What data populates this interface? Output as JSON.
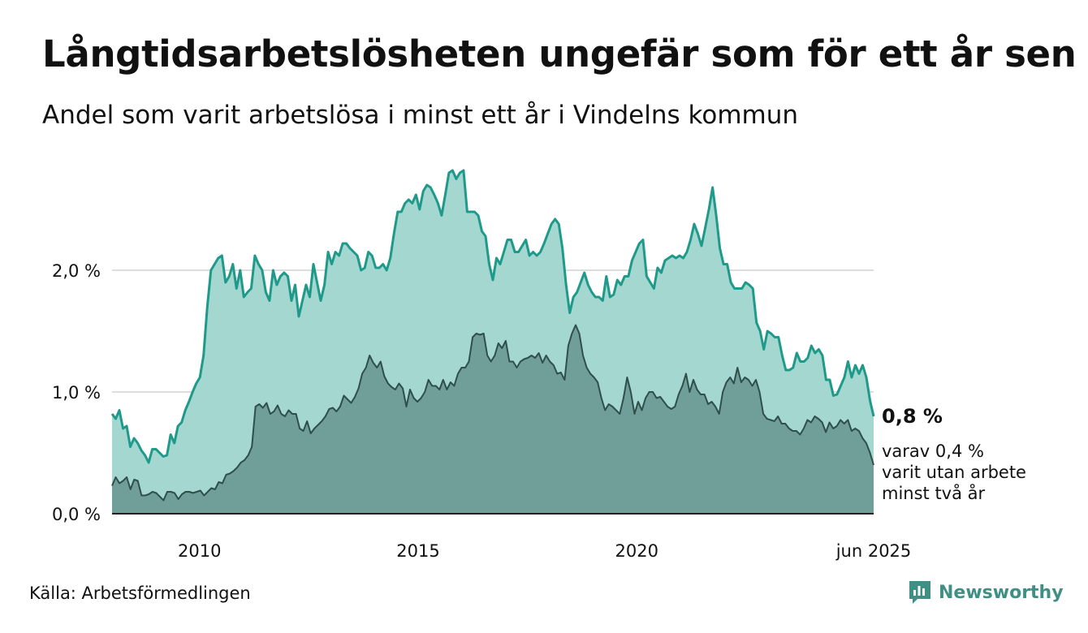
{
  "header": {
    "title": "Långtidsarbetslösheten ungefär som för ett år sen",
    "subtitle": "Andel som varit arbetslösa i minst ett år i Vindelns kommun"
  },
  "footer": {
    "source": "Källa: Arbetsförmedlingen",
    "brand": "Newsworthy",
    "brand_icon": "bar-chart-speech-bubble-icon"
  },
  "colors": {
    "upper_fill": "#a3d7d0",
    "upper_line": "#1f9a8a",
    "lower_fill": "#6f9f98",
    "lower_line": "#2f4f4a",
    "grid": "#dddddd",
    "axis": "#222222",
    "brand": "#3f8f85"
  },
  "chart_data": {
    "type": "area",
    "x_start": "2008-01",
    "x_end": "2025-06",
    "x_interval": "month",
    "ylim": [
      0,
      3.0
    ],
    "grid": true,
    "y_ticks": [
      {
        "value": 0,
        "label": "0,0 %"
      },
      {
        "value": 1,
        "label": "1,0 %"
      },
      {
        "value": 2,
        "label": "2,0 %"
      }
    ],
    "x_ticks": [
      {
        "date": "2010-01",
        "label": "2010"
      },
      {
        "date": "2015-01",
        "label": "2015"
      },
      {
        "date": "2020-01",
        "label": "2020"
      },
      {
        "date": "2025-06",
        "label": "jun 2025"
      }
    ],
    "annotations": {
      "end_value": "0,8 %",
      "end_note": [
        "varav 0,4 %",
        "varit utan arbete",
        "minst två år"
      ]
    },
    "series": [
      {
        "key": "min_ett_ar",
        "style": "upper",
        "values": [
          0.82,
          0.78,
          0.85,
          0.7,
          0.72,
          0.55,
          0.62,
          0.58,
          0.52,
          0.48,
          0.42,
          0.53,
          0.53,
          0.5,
          0.47,
          0.48,
          0.65,
          0.58,
          0.72,
          0.75,
          0.85,
          0.92,
          1.0,
          1.07,
          1.12,
          1.3,
          1.7,
          2.0,
          2.05,
          2.1,
          2.12,
          1.9,
          1.95,
          2.05,
          1.85,
          2.0,
          1.78,
          1.82,
          1.85,
          2.12,
          2.05,
          2.0,
          1.82,
          1.75,
          2.0,
          1.88,
          1.95,
          1.98,
          1.95,
          1.75,
          1.88,
          1.62,
          1.75,
          1.88,
          1.78,
          2.05,
          1.9,
          1.75,
          1.88,
          2.15,
          2.05,
          2.15,
          2.12,
          2.22,
          2.22,
          2.18,
          2.15,
          2.12,
          2.0,
          2.02,
          2.15,
          2.12,
          2.02,
          2.02,
          2.05,
          2.0,
          2.1,
          2.3,
          2.48,
          2.48,
          2.55,
          2.58,
          2.55,
          2.62,
          2.5,
          2.65,
          2.7,
          2.68,
          2.62,
          2.55,
          2.45,
          2.62,
          2.8,
          2.82,
          2.75,
          2.8,
          2.82,
          2.48,
          2.48,
          2.48,
          2.45,
          2.32,
          2.28,
          2.05,
          1.92,
          2.1,
          2.05,
          2.15,
          2.25,
          2.25,
          2.15,
          2.15,
          2.2,
          2.25,
          2.12,
          2.15,
          2.12,
          2.15,
          2.22,
          2.3,
          2.38,
          2.42,
          2.38,
          2.18,
          1.88,
          1.65,
          1.78,
          1.82,
          1.9,
          1.98,
          1.88,
          1.82,
          1.78,
          1.78,
          1.75,
          1.95,
          1.78,
          1.8,
          1.92,
          1.88,
          1.95,
          1.95,
          2.08,
          2.15,
          2.22,
          2.25,
          1.95,
          1.9,
          1.85,
          2.02,
          1.98,
          2.08,
          2.1,
          2.12,
          2.1,
          2.12,
          2.1,
          2.15,
          2.25,
          2.38,
          2.3,
          2.2,
          2.35,
          2.5,
          2.68,
          2.45,
          2.18,
          2.05,
          2.05,
          1.9,
          1.85,
          1.85,
          1.85,
          1.9,
          1.88,
          1.85,
          1.57,
          1.5,
          1.35,
          1.5,
          1.48,
          1.45,
          1.45,
          1.3,
          1.18,
          1.18,
          1.2,
          1.32,
          1.25,
          1.25,
          1.28,
          1.38,
          1.32,
          1.35,
          1.3,
          1.1,
          1.1,
          0.97,
          0.98,
          1.05,
          1.12,
          1.25,
          1.12,
          1.22,
          1.15,
          1.22,
          1.12,
          0.93,
          0.8
        ]
      },
      {
        "key": "minst_tva_ar",
        "style": "lower",
        "values": [
          0.23,
          0.3,
          0.25,
          0.27,
          0.3,
          0.2,
          0.28,
          0.27,
          0.15,
          0.15,
          0.16,
          0.18,
          0.17,
          0.14,
          0.11,
          0.18,
          0.18,
          0.17,
          0.12,
          0.16,
          0.18,
          0.18,
          0.17,
          0.18,
          0.19,
          0.15,
          0.18,
          0.21,
          0.2,
          0.26,
          0.25,
          0.32,
          0.33,
          0.35,
          0.38,
          0.42,
          0.44,
          0.48,
          0.55,
          0.88,
          0.9,
          0.87,
          0.91,
          0.82,
          0.84,
          0.89,
          0.82,
          0.8,
          0.85,
          0.82,
          0.82,
          0.7,
          0.68,
          0.76,
          0.66,
          0.7,
          0.73,
          0.76,
          0.8,
          0.86,
          0.87,
          0.84,
          0.88,
          0.97,
          0.94,
          0.91,
          0.96,
          1.03,
          1.15,
          1.2,
          1.3,
          1.24,
          1.2,
          1.25,
          1.13,
          1.07,
          1.04,
          1.02,
          1.07,
          1.03,
          0.88,
          1.02,
          0.95,
          0.92,
          0.95,
          1.0,
          1.1,
          1.05,
          1.05,
          1.02,
          1.1,
          1.02,
          1.08,
          1.05,
          1.15,
          1.2,
          1.2,
          1.25,
          1.45,
          1.48,
          1.47,
          1.48,
          1.3,
          1.25,
          1.3,
          1.4,
          1.36,
          1.42,
          1.25,
          1.25,
          1.2,
          1.25,
          1.27,
          1.28,
          1.3,
          1.28,
          1.32,
          1.24,
          1.3,
          1.25,
          1.22,
          1.15,
          1.16,
          1.1,
          1.38,
          1.48,
          1.55,
          1.48,
          1.3,
          1.2,
          1.15,
          1.12,
          1.08,
          0.95,
          0.85,
          0.9,
          0.88,
          0.85,
          0.82,
          0.95,
          1.12,
          1.0,
          0.82,
          0.92,
          0.85,
          0.95,
          1.0,
          1.0,
          0.95,
          0.96,
          0.92,
          0.88,
          0.86,
          0.88,
          0.98,
          1.05,
          1.15,
          1.0,
          1.1,
          1.02,
          0.98,
          0.98,
          0.9,
          0.92,
          0.88,
          0.82,
          1.0,
          1.08,
          1.12,
          1.07,
          1.2,
          1.08,
          1.12,
          1.1,
          1.05,
          1.1,
          1.0,
          0.82,
          0.78,
          0.77,
          0.76,
          0.8,
          0.74,
          0.74,
          0.7,
          0.68,
          0.68,
          0.65,
          0.7,
          0.77,
          0.75,
          0.8,
          0.78,
          0.75,
          0.67,
          0.75,
          0.7,
          0.72,
          0.77,
          0.74,
          0.77,
          0.68,
          0.7,
          0.68,
          0.62,
          0.58,
          0.5,
          0.4
        ]
      }
    ]
  }
}
